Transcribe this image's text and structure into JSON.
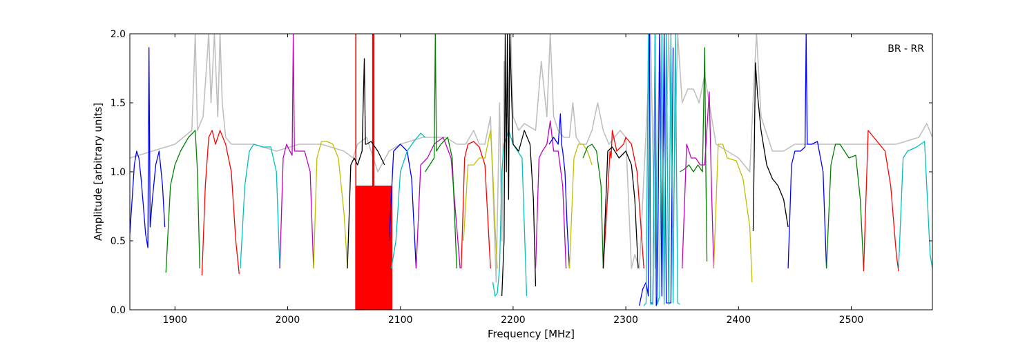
{
  "chart_data": {
    "type": "line",
    "title": "",
    "xlabel": "Frequency [MHz]",
    "ylabel": "Amplitude [arbitrary units]",
    "xlim": [
      1860,
      2572
    ],
    "ylim": [
      0.0,
      2.0
    ],
    "xticks": [
      1900,
      2000,
      2100,
      2200,
      2300,
      2400,
      2500
    ],
    "xtick_labels": [
      "1900",
      "2000",
      "2100",
      "2200",
      "2300",
      "2400",
      "2500"
    ],
    "yticks": [
      0.0,
      0.5,
      1.0,
      1.5,
      2.0
    ],
    "ytick_labels": [
      "0.0",
      "0.5",
      "1.0",
      "1.5",
      "2.0"
    ],
    "annotation": "BR - RR",
    "grid": false,
    "background_series": {
      "color": "#bfbfbf",
      "x": [
        1860,
        1880,
        1900,
        1915,
        1918,
        1920,
        1925,
        1930,
        1932,
        1935,
        1938,
        1940,
        1942,
        1945,
        1950,
        1955,
        1970,
        1990,
        2010,
        2030,
        2050,
        2058,
        2062,
        2070,
        2080,
        2090,
        2100,
        2120,
        2140,
        2150,
        2158,
        2165,
        2170,
        2175,
        2180,
        2185,
        2188,
        2190,
        2192,
        2195,
        2198,
        2200,
        2205,
        2210,
        2220,
        2225,
        2230,
        2233,
        2236,
        2240,
        2245,
        2250,
        2253,
        2256,
        2260,
        2265,
        2270,
        2275,
        2280,
        2285,
        2290,
        2295,
        2300,
        2305,
        2308,
        2312,
        2318,
        2322,
        2326,
        2330,
        2334,
        2338,
        2342,
        2346,
        2350,
        2355,
        2360,
        2365,
        2370,
        2380,
        2400,
        2410,
        2414,
        2416,
        2420,
        2430,
        2440,
        2450,
        2470,
        2500,
        2540,
        2560,
        2567,
        2572
      ],
      "y": [
        1.1,
        1.15,
        1.2,
        1.3,
        2.0,
        1.3,
        1.4,
        2.0,
        1.5,
        2.0,
        1.4,
        2.0,
        1.5,
        1.25,
        1.2,
        1.2,
        1.2,
        1.15,
        1.2,
        1.2,
        1.15,
        1.1,
        1.2,
        1.25,
        1.0,
        1.15,
        1.2,
        1.25,
        1.25,
        1.2,
        1.2,
        1.3,
        1.2,
        1.2,
        1.4,
        0.2,
        1.5,
        0.5,
        1.8,
        1.4,
        2.0,
        1.4,
        1.3,
        1.35,
        1.3,
        1.8,
        1.4,
        2.0,
        1.4,
        1.3,
        1.25,
        1.25,
        1.5,
        1.25,
        1.2,
        1.2,
        1.3,
        1.5,
        1.3,
        1.2,
        1.25,
        1.3,
        1.25,
        0.3,
        0.4,
        0.3,
        1.3,
        2.0,
        0.3,
        2.0,
        0.5,
        2.0,
        0.6,
        2.0,
        1.5,
        1.6,
        1.6,
        1.5,
        1.7,
        1.2,
        1.1,
        1.0,
        1.7,
        2.0,
        1.4,
        1.15,
        1.15,
        1.2,
        1.2,
        1.2,
        1.2,
        1.25,
        1.35,
        1.25
      ]
    },
    "series": [
      {
        "color": "#0000ff",
        "x": [
          1860,
          1862,
          1864,
          1866,
          1868,
          1870,
          1872,
          1874,
          1876,
          1877,
          1878,
          1880,
          1883,
          1886,
          1889,
          1891
        ],
        "y": [
          0.55,
          0.8,
          1.05,
          1.15,
          1.1,
          0.95,
          0.75,
          0.55,
          0.45,
          1.9,
          0.6,
          0.8,
          1.05,
          1.15,
          0.9,
          0.6
        ]
      },
      {
        "color": "#008000",
        "x": [
          1892,
          1896,
          1900,
          1905,
          1912,
          1918,
          1920,
          1922
        ],
        "y": [
          0.27,
          0.9,
          1.05,
          1.15,
          1.25,
          1.3,
          1.0,
          0.3
        ]
      },
      {
        "color": "#ff0000",
        "x": [
          1924,
          1927,
          1930,
          1933,
          1936,
          1940,
          1945,
          1950,
          1954,
          1957
        ],
        "y": [
          0.25,
          0.9,
          1.25,
          1.3,
          1.2,
          1.3,
          1.2,
          1.0,
          0.5,
          0.26
        ]
      },
      {
        "color": "#00bfbf",
        "x": [
          1958,
          1962,
          1966,
          1970,
          1978,
          1985,
          1990,
          1993
        ],
        "y": [
          0.3,
          0.9,
          1.15,
          1.2,
          1.18,
          1.18,
          1.0,
          0.3
        ]
      },
      {
        "color": "#bf00bf",
        "x": [
          1993,
          1996,
          1999,
          2002,
          2004,
          2005,
          2006,
          2010,
          2015,
          2020,
          2023
        ],
        "y": [
          0.3,
          1.1,
          1.2,
          1.15,
          1.12,
          2.0,
          1.15,
          1.15,
          1.15,
          1.0,
          0.3
        ]
      },
      {
        "color": "#bfbf00",
        "x": [
          2023,
          2026,
          2030,
          2035,
          2040,
          2045,
          2050,
          2053
        ],
        "y": [
          0.3,
          1.1,
          1.22,
          1.22,
          1.2,
          1.1,
          0.7,
          0.3
        ]
      },
      {
        "color": "#000000",
        "x": [
          2053,
          2056,
          2059,
          2062,
          2066,
          2068,
          2069,
          2070,
          2074,
          2080,
          2086
        ],
        "y": [
          0.3,
          1.05,
          1.1,
          1.05,
          1.15,
          1.82,
          1.2,
          1.2,
          1.22,
          1.15,
          1.05
        ]
      },
      {
        "color": "#0000ff",
        "x": [
          2090,
          2094,
          2100,
          2106,
          2110,
          2114
        ],
        "y": [
          0.5,
          1.15,
          1.2,
          1.15,
          0.95,
          0.3
        ]
      },
      {
        "color": "#00bfbf",
        "x": [
          2092,
          2096,
          2100,
          2106,
          2112,
          2118,
          2122
        ],
        "y": [
          0.3,
          0.5,
          1.0,
          1.15,
          1.22,
          1.28,
          1.25
        ]
      },
      {
        "color": "#bf00bf",
        "x": [
          2114,
          2118,
          2124,
          2130,
          2138,
          2145,
          2150,
          2153
        ],
        "y": [
          0.3,
          1.05,
          1.1,
          1.2,
          1.25,
          1.1,
          0.6,
          0.3
        ]
      },
      {
        "color": "#008000",
        "x": [
          2122,
          2126,
          2130,
          2131,
          2132,
          2136,
          2142,
          2146,
          2150
        ],
        "y": [
          1.0,
          1.05,
          1.1,
          2.0,
          1.15,
          1.2,
          1.25,
          1.1,
          0.3
        ]
      },
      {
        "color": "#ff0000",
        "x": [
          2154,
          2157,
          2160,
          2165,
          2170,
          2175,
          2180
        ],
        "y": [
          0.3,
          1.1,
          1.2,
          1.22,
          1.18,
          1.05,
          0.3
        ]
      },
      {
        "color": "#bfbf00",
        "x": [
          2156,
          2160,
          2165,
          2170,
          2175,
          2180,
          2182,
          2184,
          2186
        ],
        "y": [
          0.5,
          1.05,
          1.05,
          1.1,
          1.1,
          1.3,
          1.0,
          0.6,
          0.3
        ]
      },
      {
        "color": "#00bfbf",
        "x": [
          2182,
          2184,
          2186,
          2188,
          2190,
          2192,
          2196,
          2200,
          2204,
          2208,
          2212
        ],
        "y": [
          0.2,
          0.1,
          0.12,
          0.3,
          1.0,
          1.2,
          1.3,
          1.2,
          1.15,
          1.1,
          0.1
        ]
      },
      {
        "color": "#000000",
        "x": [
          2190,
          2192,
          2193,
          2194,
          2195,
          2196,
          2197,
          2200,
          2205,
          2210,
          2215,
          2218,
          2220
        ],
        "y": [
          0.1,
          0.5,
          2.0,
          1.0,
          2.0,
          0.8,
          2.0,
          1.2,
          1.15,
          1.3,
          1.2,
          0.8,
          0.17
        ]
      },
      {
        "color": "#bf00bf",
        "x": [
          2220,
          2223,
          2226,
          2230,
          2233,
          2236,
          2240,
          2244,
          2247
        ],
        "y": [
          0.3,
          1.1,
          1.15,
          1.2,
          1.37,
          1.15,
          1.15,
          0.9,
          0.3
        ]
      },
      {
        "color": "#0000ff",
        "x": [
          2232,
          2236,
          2240,
          2242,
          2243,
          2244,
          2246,
          2248,
          2250
        ],
        "y": [
          1.2,
          1.25,
          1.2,
          1.42,
          1.2,
          1.15,
          1.0,
          0.6,
          0.3
        ]
      },
      {
        "color": "#bfbf00",
        "x": [
          2250,
          2254,
          2258,
          2262,
          2266,
          2270
        ],
        "y": [
          0.3,
          1.1,
          1.2,
          1.2,
          1.15,
          1.05
        ]
      },
      {
        "color": "#008000",
        "x": [
          2262,
          2266,
          2270,
          2274,
          2278,
          2280
        ],
        "y": [
          1.1,
          1.18,
          1.2,
          1.15,
          0.9,
          0.3
        ]
      },
      {
        "color": "#ff0000",
        "x": [
          2280,
          2283,
          2286,
          2287,
          2288,
          2292,
          2298,
          2300,
          2305,
          2310,
          2316
        ],
        "y": [
          0.3,
          0.7,
          1.15,
          1.1,
          1.3,
          1.15,
          1.2,
          1.25,
          1.2,
          1.0,
          0.3
        ]
      },
      {
        "color": "#000000",
        "x": [
          2280,
          2284,
          2288,
          2294,
          2300,
          2305,
          2308,
          2311
        ],
        "y": [
          0.3,
          1.15,
          1.18,
          1.1,
          1.15,
          1.05,
          0.8,
          0.3
        ]
      },
      {
        "color": "#0000ff",
        "x": [
          2312,
          2315,
          2318,
          2320,
          2321,
          2322,
          2324,
          2326,
          2327,
          2328,
          2330,
          2332,
          2333,
          2334,
          2336,
          2338,
          2340,
          2342
        ],
        "y": [
          0.03,
          0.15,
          0.2,
          0.1,
          2.0,
          0.05,
          0.05,
          2.0,
          0.03,
          0.1,
          2.0,
          0.1,
          0.95,
          2.0,
          0.05,
          0.05,
          0.05,
          1.9
        ]
      },
      {
        "color": "#00bfbf",
        "x": [
          2316,
          2318,
          2320,
          2322,
          2324,
          2326,
          2328,
          2330,
          2332,
          2334,
          2336,
          2338,
          2340,
          2342,
          2344,
          2346,
          2348
        ],
        "y": [
          0.03,
          0.05,
          2.0,
          0.04,
          0.04,
          2.0,
          0.04,
          0.1,
          2.0,
          0.04,
          2.0,
          0.04,
          2.0,
          0.05,
          2.0,
          0.05,
          0.04
        ]
      },
      {
        "color": "#008000",
        "x": [
          2348,
          2352,
          2356,
          2360,
          2364,
          2368,
          2370,
          2371,
          2372
        ],
        "y": [
          1.0,
          1.02,
          1.05,
          1.0,
          1.05,
          1.0,
          1.9,
          1.0,
          0.35
        ]
      },
      {
        "color": "#bf00bf",
        "x": [
          2350,
          2354,
          2358,
          2362,
          2366,
          2370,
          2374,
          2376,
          2378
        ],
        "y": [
          0.3,
          1.2,
          1.1,
          1.1,
          1.05,
          1.05,
          1.58,
          0.9,
          0.3
        ]
      },
      {
        "color": "#bfbf00",
        "x": [
          2378,
          2382,
          2386,
          2390,
          2398,
          2404,
          2410,
          2412
        ],
        "y": [
          0.3,
          1.2,
          1.2,
          1.1,
          1.08,
          0.95,
          0.6,
          0.2
        ]
      },
      {
        "color": "#000000",
        "x": [
          2413,
          2415,
          2417,
          2420,
          2425,
          2430,
          2435,
          2440,
          2444
        ],
        "y": [
          0.57,
          1.79,
          1.55,
          1.3,
          1.05,
          0.95,
          0.9,
          0.8,
          0.6
        ]
      },
      {
        "color": "#0000ff",
        "x": [
          2444,
          2447,
          2450,
          2455,
          2459,
          2460,
          2461,
          2465,
          2470,
          2475,
          2478
        ],
        "y": [
          0.3,
          1.05,
          1.15,
          1.15,
          1.18,
          2.0,
          1.2,
          1.2,
          1.22,
          1.0,
          0.3
        ]
      },
      {
        "color": "#008000",
        "x": [
          2478,
          2482,
          2486,
          2490,
          2498,
          2504,
          2508,
          2511
        ],
        "y": [
          0.3,
          1.05,
          1.2,
          1.2,
          1.1,
          1.12,
          0.8,
          0.3
        ]
      },
      {
        "color": "#ff0000",
        "x": [
          2511,
          2515,
          2520,
          2525,
          2530,
          2535,
          2540,
          2542
        ],
        "y": [
          0.28,
          1.3,
          1.25,
          1.2,
          1.15,
          0.9,
          0.4,
          0.28
        ]
      },
      {
        "color": "#00bfbf",
        "x": [
          2542,
          2546,
          2550,
          2558,
          2565,
          2570,
          2572
        ],
        "y": [
          0.3,
          1.1,
          1.15,
          1.18,
          1.22,
          0.4,
          0.3
        ]
      }
    ],
    "fills": [
      {
        "color": "#ff0000",
        "x_start": 2060,
        "x_end": 2093,
        "y_low": 0.0,
        "y_high": 0.9
      },
      {
        "color": "#ff0000",
        "x_start": 2060,
        "x_end": 2061,
        "y_low": 0.0,
        "y_high": 2.0
      },
      {
        "color": "#ff0000",
        "x_start": 2075,
        "x_end": 2077,
        "y_low": 0.0,
        "y_high": 2.0
      }
    ]
  }
}
